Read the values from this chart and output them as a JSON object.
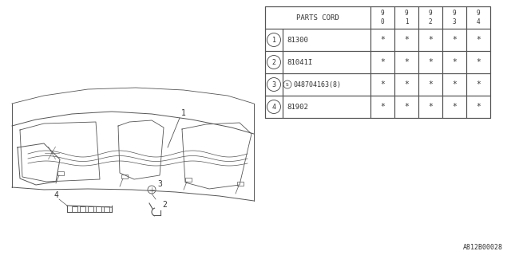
{
  "bg_color": "#ffffff",
  "title": "PARTS CORD",
  "columns": [
    "9\n0",
    "9\n1",
    "9\n2",
    "9\n3",
    "9\n4"
  ],
  "rows": [
    {
      "num": "1",
      "part": "81300",
      "vals": [
        "*",
        "*",
        "*",
        "*",
        "*"
      ]
    },
    {
      "num": "2",
      "part": "81041I",
      "vals": [
        "*",
        "*",
        "*",
        "*",
        "*"
      ]
    },
    {
      "num": "3",
      "part": "048704163(8)",
      "vals": [
        "*",
        "*",
        "*",
        "*",
        "*"
      ]
    },
    {
      "num": "4",
      "part": "81902",
      "vals": [
        "*",
        "*",
        "*",
        "*",
        "*"
      ]
    }
  ],
  "footnote": "A812B00028",
  "line_color": "#555555",
  "text_color": "#333333"
}
